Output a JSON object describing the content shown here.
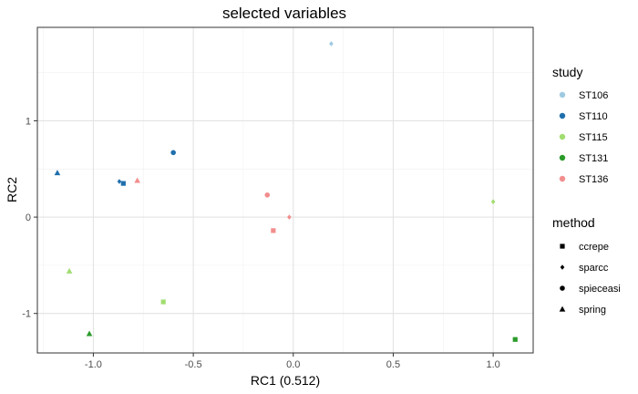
{
  "chart_data": {
    "type": "scatter",
    "title": "selected variables",
    "xlabel": "RC1 (0.512)",
    "ylabel": "RC2",
    "xlim": [
      -1.28,
      1.2
    ],
    "ylim": [
      -1.41,
      1.97
    ],
    "xticks": [
      -1.0,
      -0.5,
      0.0,
      0.5,
      1.0
    ],
    "xtick_labels": [
      "-1.0",
      "-0.5",
      "0.0",
      "0.5",
      "1.0"
    ],
    "yticks": [
      -1,
      0,
      1
    ],
    "ytick_labels": [
      "-1",
      "0",
      "1"
    ],
    "grid": true,
    "legend_placement": "right",
    "study_legend": {
      "title": "study",
      "entries": [
        {
          "label": "ST106",
          "color": "#9ecae1"
        },
        {
          "label": "ST110",
          "color": "#1f6fad"
        },
        {
          "label": "ST115",
          "color": "#a1dd70"
        },
        {
          "label": "ST131",
          "color": "#2a9b2a"
        },
        {
          "label": "ST136",
          "color": "#f28e8e"
        }
      ]
    },
    "method_legend": {
      "title": "method",
      "entries": [
        {
          "label": "ccrepe",
          "shape": "square"
        },
        {
          "label": "sparcc",
          "shape": "diamond"
        },
        {
          "label": "spieceasi",
          "shape": "circle"
        },
        {
          "label": "spring",
          "shape": "triangle"
        }
      ]
    },
    "points": [
      {
        "x": 0.19,
        "y": 1.8,
        "study": "ST106",
        "method": "sparcc"
      },
      {
        "x": -0.6,
        "y": 0.67,
        "study": "ST110",
        "method": "spieceasi"
      },
      {
        "x": -1.18,
        "y": 0.46,
        "study": "ST110",
        "method": "spring"
      },
      {
        "x": -0.87,
        "y": 0.37,
        "study": "ST110",
        "method": "sparcc"
      },
      {
        "x": -0.85,
        "y": 0.35,
        "study": "ST110",
        "method": "ccrepe"
      },
      {
        "x": -0.78,
        "y": 0.38,
        "study": "ST136",
        "method": "spring"
      },
      {
        "x": -0.13,
        "y": 0.23,
        "study": "ST136",
        "method": "spieceasi"
      },
      {
        "x": -0.02,
        "y": 0.0,
        "study": "ST136",
        "method": "sparcc"
      },
      {
        "x": -0.1,
        "y": -0.14,
        "study": "ST136",
        "method": "ccrepe"
      },
      {
        "x": 1.0,
        "y": 0.16,
        "study": "ST115",
        "method": "sparcc"
      },
      {
        "x": -1.12,
        "y": -0.56,
        "study": "ST115",
        "method": "spring"
      },
      {
        "x": -0.65,
        "y": -0.88,
        "study": "ST115",
        "method": "ccrepe"
      },
      {
        "x": -1.02,
        "y": -1.21,
        "study": "ST131",
        "method": "spring"
      },
      {
        "x": 1.11,
        "y": -1.27,
        "study": "ST131",
        "method": "ccrepe"
      }
    ]
  }
}
